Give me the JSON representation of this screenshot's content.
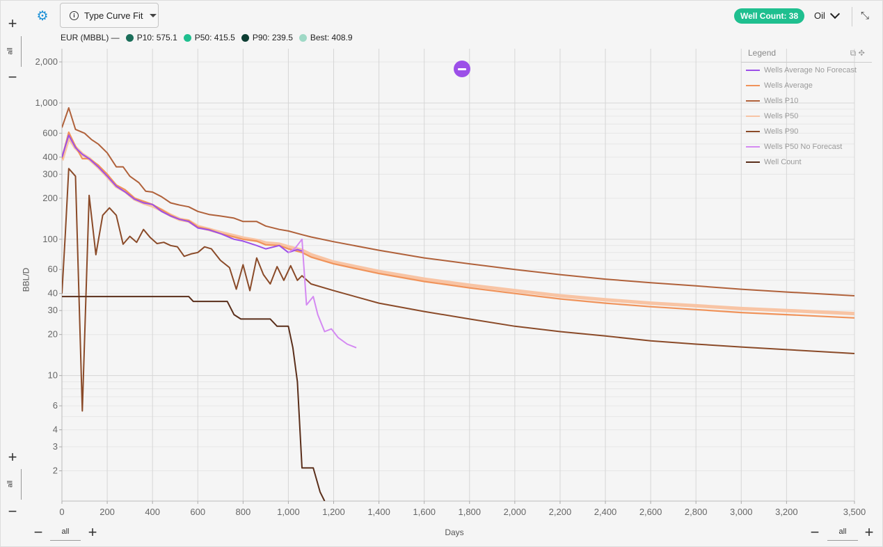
{
  "toolbar": {
    "settings_icon": "gear-icon",
    "dropdown_label": "Type Curve Fit",
    "well_count_badge": "Well Count: 38",
    "phase_select": "Oil",
    "collapse_icon": "collapse-icon"
  },
  "eur": {
    "label": "EUR (MBBL) —",
    "items": [
      {
        "text": "P10: 575.1",
        "color": "#1b6e5a"
      },
      {
        "text": "P50: 415.5",
        "color": "#1fbf8f"
      },
      {
        "text": "P90: 239.5",
        "color": "#0d3d33"
      },
      {
        "text": "Best: 408.9",
        "color": "#9fd9c6"
      }
    ]
  },
  "controls": {
    "plus": "+",
    "minus_left": "−",
    "all": "all"
  },
  "legend": {
    "title": "Legend",
    "items": [
      {
        "label": "Wells Average No Forecast",
        "color": "#9c4fe8"
      },
      {
        "label": "Wells Average",
        "color": "#f0935a"
      },
      {
        "label": "Wells P10",
        "color": "#b0613a"
      },
      {
        "label": "Wells P50",
        "color": "#f8c4a4"
      },
      {
        "label": "Wells P90",
        "color": "#8a4a28"
      },
      {
        "label": "Wells P50 No Forecast",
        "color": "#d489f2"
      },
      {
        "label": "Well Count",
        "color": "#5a2e1a"
      }
    ]
  },
  "chart_data": {
    "type": "line",
    "xlabel": "Days",
    "ylabel": "BBL/D",
    "xlim": [
      0,
      3500
    ],
    "ylim": [
      1.2,
      2500
    ],
    "yscale": "log",
    "grid": true,
    "legend_position": "top-right",
    "x_ticks": [
      0,
      200,
      400,
      600,
      800,
      1000,
      1200,
      1400,
      1600,
      1800,
      2000,
      2200,
      2400,
      2600,
      2800,
      3000,
      3200,
      3500
    ],
    "x_tick_labels": [
      "0",
      "200",
      "400",
      "600",
      "800",
      "1,000",
      "1,200",
      "1,400",
      "1,600",
      "1,800",
      "2,000",
      "2,200",
      "2,400",
      "2,600",
      "2,800",
      "3,000",
      "3,200",
      "3,500"
    ],
    "y_ticks": [
      2,
      3,
      4,
      6,
      10,
      20,
      30,
      40,
      60,
      100,
      200,
      300,
      400,
      600,
      1000,
      2000
    ],
    "y_tick_labels": [
      "2",
      "3",
      "4",
      "6",
      "10",
      "20",
      "30",
      "40",
      "60",
      "100",
      "200",
      "300",
      "400",
      "600",
      "1,000",
      "2,000"
    ],
    "series": [
      {
        "name": "Wells P10",
        "color": "#b0613a",
        "x": [
          0,
          30,
          60,
          100,
          130,
          160,
          200,
          240,
          270,
          300,
          340,
          370,
          400,
          440,
          480,
          520,
          560,
          600,
          650,
          700,
          760,
          800,
          860,
          900,
          960,
          1000,
          1060,
          1100,
          1200,
          1400,
          1600,
          1800,
          2000,
          2200,
          2400,
          2600,
          2800,
          3000,
          3200,
          3500
        ],
        "y": [
          660,
          920,
          640,
          600,
          540,
          500,
          430,
          340,
          340,
          290,
          260,
          225,
          222,
          205,
          185,
          178,
          173,
          160,
          152,
          148,
          143,
          135,
          135,
          125,
          118,
          115,
          108,
          104,
          96,
          83,
          73,
          66,
          60,
          55,
          51,
          48,
          45.5,
          43,
          41,
          38.5
        ]
      },
      {
        "name": "Wells Average",
        "color": "#f0935a",
        "x": [
          0,
          30,
          60,
          90,
          120,
          160,
          200,
          240,
          280,
          320,
          360,
          400,
          440,
          480,
          520,
          560,
          600,
          650,
          700,
          760,
          800,
          860,
          900,
          960,
          1000,
          1060,
          1100,
          1200,
          1400,
          1600,
          1800,
          2000,
          2200,
          2400,
          2600,
          2800,
          3000,
          3200,
          3500
        ],
        "y": [
          390,
          610,
          480,
          390,
          390,
          350,
          300,
          250,
          230,
          200,
          190,
          180,
          165,
          150,
          140,
          137,
          123,
          118,
          110,
          104,
          100,
          97,
          91,
          90,
          85,
          80,
          74,
          66,
          56,
          49,
          44,
          40,
          36.5,
          34,
          32,
          30.5,
          29,
          28,
          26.5
        ]
      },
      {
        "name": "Wells P50",
        "color": "#f8c4a4",
        "x": [
          0,
          30,
          60,
          90,
          120,
          160,
          200,
          240,
          280,
          320,
          360,
          400,
          440,
          480,
          520,
          560,
          600,
          650,
          700,
          760,
          800,
          860,
          900,
          960,
          1000,
          1060,
          1100,
          1200,
          1400,
          1600,
          1800,
          2000,
          2200,
          2400,
          2600,
          2800,
          3000,
          3200,
          3500
        ],
        "y": [
          380,
          560,
          470,
          420,
          390,
          340,
          290,
          245,
          225,
          198,
          185,
          176,
          163,
          150,
          140,
          136,
          124,
          118,
          112,
          106,
          102,
          98,
          94,
          92,
          88,
          83,
          77,
          68,
          58,
          51,
          46,
          42,
          38.5,
          36,
          34,
          32.5,
          31,
          30,
          28.5
        ]
      },
      {
        "name": "Wells P90",
        "color": "#8a4a28",
        "x": [
          0,
          15,
          30,
          60,
          90,
          120,
          150,
          180,
          210,
          240,
          270,
          300,
          330,
          360,
          390,
          420,
          450,
          480,
          510,
          540,
          570,
          600,
          630,
          660,
          700,
          740,
          770,
          800,
          830,
          860,
          890,
          920,
          950,
          980,
          1010,
          1040,
          1060,
          1100,
          1200,
          1400,
          1600,
          1800,
          2000,
          2200,
          2400,
          2600,
          2800,
          3000,
          3200,
          3500
        ],
        "y": [
          40,
          110,
          330,
          290,
          5.5,
          210,
          77,
          150,
          170,
          150,
          92,
          105,
          95,
          118,
          103,
          93,
          95,
          90,
          88,
          75,
          78,
          80,
          88,
          85,
          70,
          62,
          43,
          65,
          42,
          73,
          55,
          47,
          63,
          50,
          64,
          50,
          54,
          47,
          42,
          34,
          29.5,
          26,
          23,
          21,
          19.5,
          18,
          17,
          16.2,
          15.5,
          14.5
        ]
      },
      {
        "name": "Wells Average No Forecast",
        "color": "#9c4fe8",
        "x": [
          0,
          30,
          60,
          90,
          120,
          160,
          200,
          240,
          280,
          320,
          360,
          400,
          440,
          480,
          520,
          560,
          600,
          650,
          700,
          760,
          800,
          860,
          900,
          960,
          1000,
          1040,
          1060
        ],
        "y": [
          400,
          580,
          470,
          420,
          390,
          340,
          290,
          245,
          222,
          197,
          185,
          180,
          160,
          148,
          140,
          135,
          121,
          117,
          110,
          100,
          97,
          90,
          85,
          90,
          80,
          84,
          82
        ]
      },
      {
        "name": "Wells P50 No Forecast",
        "color": "#d489f2",
        "x": [
          1000,
          1030,
          1060,
          1080,
          1110,
          1130,
          1160,
          1190,
          1220,
          1260,
          1300
        ],
        "y": [
          80,
          86,
          100,
          33,
          38,
          28,
          21,
          22,
          19,
          17,
          16
        ]
      },
      {
        "name": "Well Count",
        "color": "#5a2e1a",
        "x": [
          0,
          560,
          580,
          730,
          760,
          790,
          920,
          950,
          1000,
          1020,
          1040,
          1060,
          1080,
          1110,
          1140,
          1160
        ],
        "y": [
          38,
          38,
          35,
          35,
          28,
          26,
          26,
          23,
          23,
          16,
          9,
          2.1,
          2.1,
          2.1,
          1.4,
          1.2
        ]
      }
    ]
  }
}
